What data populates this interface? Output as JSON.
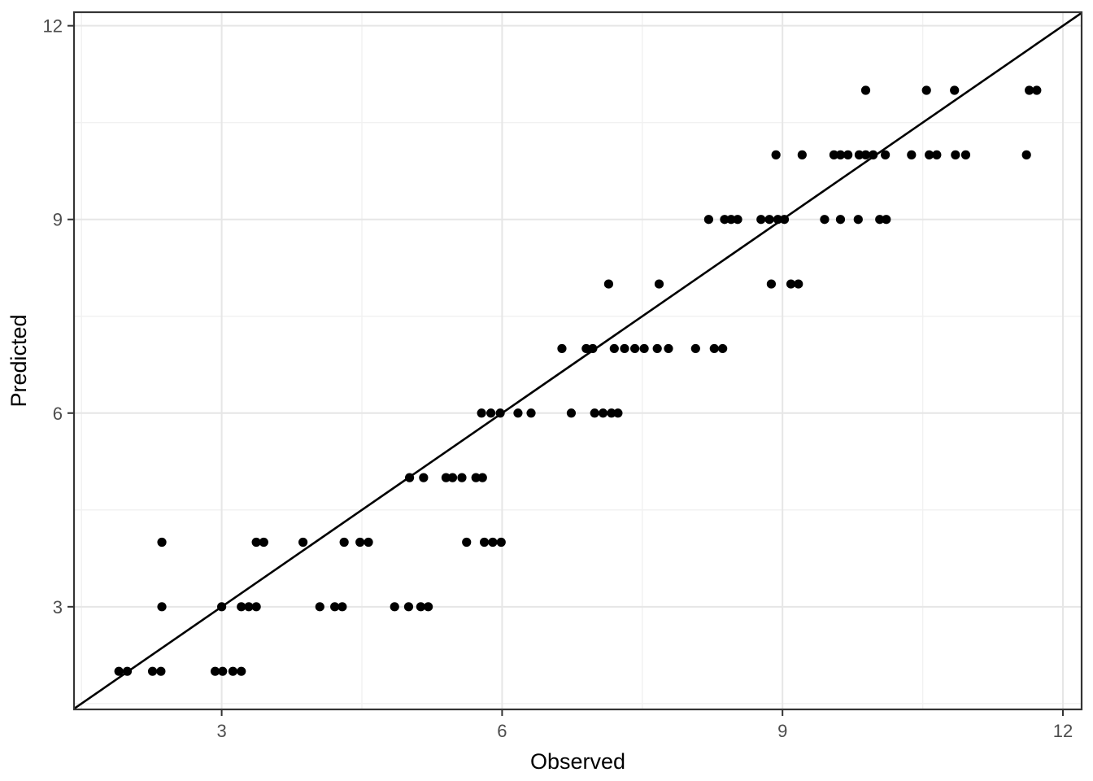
{
  "chart_data": {
    "type": "scatter",
    "title": "",
    "xlabel": "Observed",
    "ylabel": "Predicted",
    "xlim": [
      1.42,
      12.2
    ],
    "ylim": [
      1.41,
      12.21
    ],
    "x_major_ticks": [
      3,
      6,
      9,
      12
    ],
    "y_major_ticks": [
      3,
      6,
      9,
      12
    ],
    "x_minor_ticks": [
      1.5,
      4.5,
      7.5,
      10.5
    ],
    "y_minor_ticks": [
      1.5,
      4.5,
      7.5,
      10.5
    ],
    "grid": true,
    "legend": "none",
    "identity_line": {
      "slope": 1,
      "intercept": 0
    },
    "style": {
      "point_color": "#000000",
      "point_radius": 5.6,
      "line_color": "#000000",
      "line_width": 2.6,
      "panel_bg": "#ffffff",
      "panel_border_color": "#343434",
      "grid_major_color": "#e6e6e6",
      "grid_minor_color": "#f1f1f1",
      "tick_color": "#333333",
      "tick_label_color": "#4d4d4d"
    },
    "points": [
      [
        1.9,
        2
      ],
      [
        1.99,
        2
      ],
      [
        2.26,
        2
      ],
      [
        2.35,
        2
      ],
      [
        2.93,
        2
      ],
      [
        3.01,
        2
      ],
      [
        3.12,
        2
      ],
      [
        3.21,
        2
      ],
      [
        2.36,
        3
      ],
      [
        3.0,
        3
      ],
      [
        3.21,
        3
      ],
      [
        3.29,
        3
      ],
      [
        3.37,
        3
      ],
      [
        4.05,
        3
      ],
      [
        4.21,
        3
      ],
      [
        4.29,
        3
      ],
      [
        4.85,
        3
      ],
      [
        5.0,
        3
      ],
      [
        5.13,
        3
      ],
      [
        5.21,
        3
      ],
      [
        2.36,
        4
      ],
      [
        3.37,
        4
      ],
      [
        3.45,
        4
      ],
      [
        3.87,
        4
      ],
      [
        4.31,
        4
      ],
      [
        4.48,
        4
      ],
      [
        4.57,
        4
      ],
      [
        5.62,
        4
      ],
      [
        5.81,
        4
      ],
      [
        5.9,
        4
      ],
      [
        5.99,
        4
      ],
      [
        5.01,
        5
      ],
      [
        5.16,
        5
      ],
      [
        5.4,
        5
      ],
      [
        5.47,
        5
      ],
      [
        5.57,
        5
      ],
      [
        5.72,
        5
      ],
      [
        5.79,
        5
      ],
      [
        5.78,
        6
      ],
      [
        5.88,
        6
      ],
      [
        5.98,
        6
      ],
      [
        6.17,
        6
      ],
      [
        6.31,
        6
      ],
      [
        6.74,
        6
      ],
      [
        6.99,
        6
      ],
      [
        7.08,
        6
      ],
      [
        7.17,
        6
      ],
      [
        7.24,
        6
      ],
      [
        6.64,
        7
      ],
      [
        6.9,
        7
      ],
      [
        6.97,
        7
      ],
      [
        7.2,
        7
      ],
      [
        7.31,
        7
      ],
      [
        7.42,
        7
      ],
      [
        7.52,
        7
      ],
      [
        7.66,
        7
      ],
      [
        7.78,
        7
      ],
      [
        8.07,
        7
      ],
      [
        8.27,
        7
      ],
      [
        8.36,
        7
      ],
      [
        7.14,
        8
      ],
      [
        7.68,
        8
      ],
      [
        8.88,
        8
      ],
      [
        9.09,
        8
      ],
      [
        9.17,
        8
      ],
      [
        8.21,
        9
      ],
      [
        8.38,
        9
      ],
      [
        8.45,
        9
      ],
      [
        8.52,
        9
      ],
      [
        8.77,
        9
      ],
      [
        8.86,
        9
      ],
      [
        8.95,
        9
      ],
      [
        9.02,
        9
      ],
      [
        9.45,
        9
      ],
      [
        9.62,
        9
      ],
      [
        9.81,
        9
      ],
      [
        10.04,
        9
      ],
      [
        10.11,
        9
      ],
      [
        8.93,
        10
      ],
      [
        9.21,
        10
      ],
      [
        9.55,
        10
      ],
      [
        9.62,
        10
      ],
      [
        9.7,
        10
      ],
      [
        9.82,
        10
      ],
      [
        9.89,
        10
      ],
      [
        9.97,
        10
      ],
      [
        10.1,
        10
      ],
      [
        10.38,
        10
      ],
      [
        10.57,
        10
      ],
      [
        10.65,
        10
      ],
      [
        10.85,
        10
      ],
      [
        10.96,
        10
      ],
      [
        11.61,
        10
      ],
      [
        9.89,
        11
      ],
      [
        10.54,
        11
      ],
      [
        10.84,
        11
      ],
      [
        11.64,
        11
      ],
      [
        11.72,
        11
      ]
    ]
  }
}
